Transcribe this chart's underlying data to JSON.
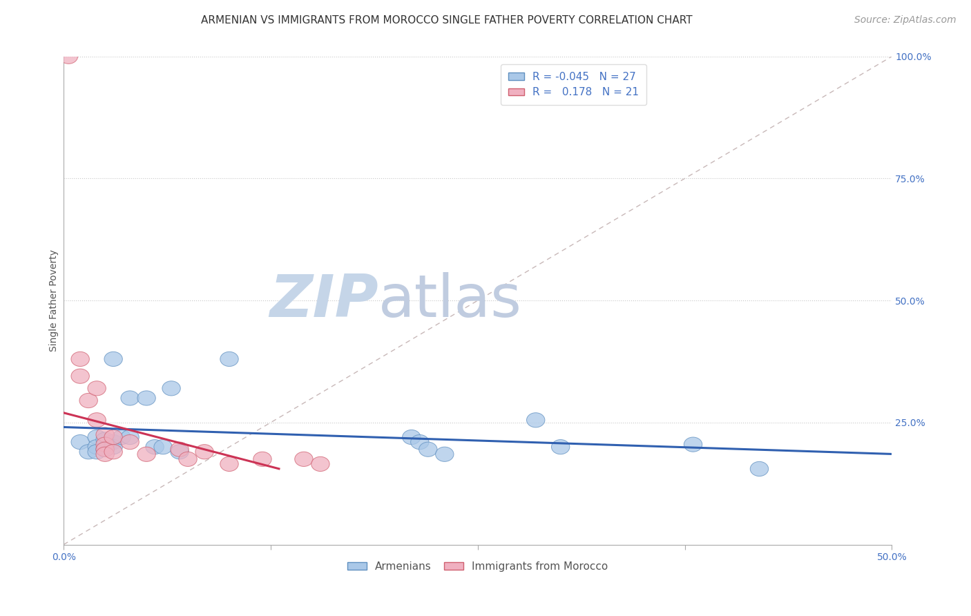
{
  "title": "ARMENIAN VS IMMIGRANTS FROM MOROCCO SINGLE FATHER POVERTY CORRELATION CHART",
  "source_text": "Source: ZipAtlas.com",
  "ylabel": "Single Father Poverty",
  "xlim": [
    0.0,
    0.5
  ],
  "ylim": [
    0.0,
    1.0
  ],
  "xtick_labels": [
    "0.0%",
    "",
    "",
    "",
    "50.0%"
  ],
  "xtick_vals": [
    0.0,
    0.125,
    0.25,
    0.375,
    0.5
  ],
  "right_ytick_labels": [
    "100.0%",
    "75.0%",
    "50.0%",
    "25.0%"
  ],
  "right_ytick_vals": [
    1.0,
    0.75,
    0.5,
    0.25
  ],
  "grid_color": "#c8c8c8",
  "background_color": "#ffffff",
  "armenians_color": "#aac8e8",
  "armenians_edge": "#6090c0",
  "morocco_color": "#f0b0c0",
  "morocco_edge": "#d06070",
  "trendline_armenians_color": "#3060b0",
  "trendline_morocco_color": "#cc3355",
  "R_armenians": -0.045,
  "N_armenians": 27,
  "R_morocco": 0.178,
  "N_morocco": 21,
  "legend_label_armenians": "Armenians",
  "legend_label_morocco": "Immigrants from Morocco",
  "armenians_x": [
    0.01,
    0.015,
    0.02,
    0.02,
    0.02,
    0.025,
    0.025,
    0.03,
    0.03,
    0.03,
    0.035,
    0.04,
    0.04,
    0.05,
    0.055,
    0.06,
    0.065,
    0.07,
    0.1,
    0.21,
    0.215,
    0.22,
    0.23,
    0.285,
    0.3,
    0.38,
    0.42
  ],
  "armenians_y": [
    0.21,
    0.19,
    0.22,
    0.2,
    0.19,
    0.215,
    0.195,
    0.38,
    0.21,
    0.2,
    0.22,
    0.22,
    0.3,
    0.3,
    0.2,
    0.2,
    0.32,
    0.19,
    0.38,
    0.22,
    0.21,
    0.195,
    0.185,
    0.255,
    0.2,
    0.205,
    0.155
  ],
  "morocco_x": [
    0.003,
    0.01,
    0.01,
    0.015,
    0.02,
    0.02,
    0.025,
    0.025,
    0.025,
    0.025,
    0.03,
    0.03,
    0.04,
    0.05,
    0.07,
    0.075,
    0.085,
    0.1,
    0.12,
    0.145,
    0.155
  ],
  "morocco_y": [
    1.0,
    0.38,
    0.345,
    0.295,
    0.32,
    0.255,
    0.225,
    0.205,
    0.195,
    0.185,
    0.22,
    0.19,
    0.21,
    0.185,
    0.195,
    0.175,
    0.19,
    0.165,
    0.175,
    0.175,
    0.165
  ],
  "watermark_zip": "ZIP",
  "watermark_atlas": "atlas",
  "watermark_color_zip": "#c5d5e8",
  "watermark_color_atlas": "#c0cce0",
  "title_fontsize": 11,
  "axis_label_fontsize": 10,
  "tick_fontsize": 10,
  "legend_fontsize": 11,
  "source_fontsize": 10
}
